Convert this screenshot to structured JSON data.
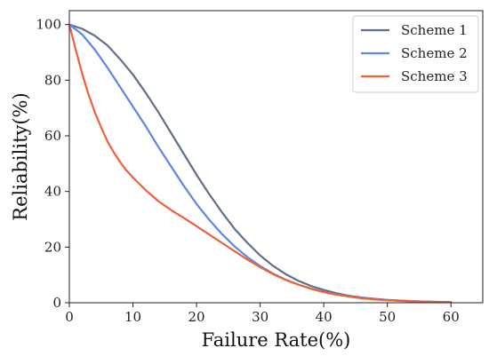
{
  "chart_data": {
    "type": "line",
    "xlabel": "Failure Rate(%)",
    "ylabel": "Reliability(%)",
    "xlim": [
      0,
      65
    ],
    "ylim": [
      0,
      105
    ],
    "xticks": [
      0,
      10,
      20,
      30,
      40,
      50,
      60
    ],
    "yticks": [
      0,
      20,
      40,
      60,
      80,
      100
    ],
    "grid": false,
    "legend_position": "top-right",
    "series": [
      {
        "name": "Scheme 1",
        "color": "#607089",
        "x": [
          0,
          2,
          4,
          6,
          8,
          10,
          12,
          14,
          16,
          18,
          20,
          22,
          24,
          26,
          28,
          30,
          32,
          34,
          36,
          38,
          40,
          42,
          44,
          46,
          48,
          50,
          52,
          54,
          56,
          58,
          60
        ],
        "y": [
          100,
          98.5,
          96,
          92.5,
          87.5,
          82,
          75.5,
          68.5,
          61,
          53.5,
          46,
          39,
          32.5,
          26.5,
          21.5,
          17,
          13.3,
          10.3,
          7.9,
          6,
          4.6,
          3.4,
          2.5,
          1.9,
          1.4,
          1,
          0.75,
          0.55,
          0.4,
          0.3,
          0.2
        ]
      },
      {
        "name": "Scheme 2",
        "color": "#5b87ea",
        "x": [
          0,
          2,
          4,
          6,
          8,
          10,
          12,
          14,
          16,
          18,
          20,
          22,
          24,
          26,
          28,
          30,
          32,
          34,
          36,
          38,
          40,
          42,
          44,
          46,
          48,
          50,
          52,
          54,
          56,
          58,
          60
        ],
        "y": [
          100,
          96.5,
          91,
          84.5,
          77.5,
          70.5,
          63.5,
          56,
          49,
          42,
          35.5,
          29.8,
          24.7,
          20.2,
          16.4,
          13.2,
          10.5,
          8.3,
          6.5,
          5.1,
          3.9,
          3,
          2.3,
          1.8,
          1.35,
          1,
          0.75,
          0.55,
          0.4,
          0.3,
          0.2
        ]
      },
      {
        "name": "Scheme 3",
        "color": "#ef6135",
        "x": [
          0,
          1,
          2,
          3,
          4,
          5,
          6,
          7,
          8,
          9,
          10,
          12,
          14,
          16,
          18,
          20,
          22,
          24,
          26,
          28,
          30,
          32,
          34,
          36,
          38,
          40,
          42,
          44,
          46,
          48,
          50,
          52,
          54,
          56,
          58,
          60
        ],
        "y": [
          100,
          91,
          82.5,
          75,
          68.5,
          63,
          58,
          54,
          50.5,
          47.5,
          45,
          40.5,
          36.5,
          33.3,
          30.5,
          27.5,
          24.5,
          21.5,
          18.5,
          15.5,
          12.8,
          10.3,
          8.2,
          6.5,
          5,
          3.8,
          2.9,
          2.2,
          1.6,
          1.2,
          0.9,
          0.65,
          0.5,
          0.35,
          0.25,
          0.2
        ]
      }
    ]
  }
}
